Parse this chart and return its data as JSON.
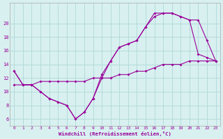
{
  "xlabel": "Windchill (Refroidissement éolien,°C)",
  "bg_color": "#d8f0f0",
  "grid_color": "#b0d8d8",
  "line_color": "#990099",
  "xlim": [
    -0.5,
    23.5
  ],
  "ylim": [
    5,
    23
  ],
  "yticks": [
    6,
    8,
    10,
    12,
    14,
    16,
    18,
    20
  ],
  "xticks": [
    0,
    1,
    2,
    3,
    4,
    5,
    6,
    7,
    8,
    9,
    10,
    11,
    12,
    13,
    14,
    15,
    16,
    17,
    18,
    19,
    20,
    21,
    22,
    23
  ],
  "line1_x": [
    0,
    1,
    2,
    3,
    4,
    5,
    6,
    7,
    8,
    9,
    10,
    11,
    12,
    13,
    14,
    15,
    16,
    17,
    18,
    19,
    20,
    21,
    22,
    23
  ],
  "line1_y": [
    13,
    11,
    11,
    10,
    9,
    8.5,
    8,
    6,
    7,
    9,
    12.5,
    14.5,
    16.5,
    17,
    17.5,
    19.5,
    21,
    21.5,
    21.5,
    21,
    20.5,
    15.5,
    15,
    14.5
  ],
  "line2_x": [
    0,
    1,
    2,
    3,
    4,
    5,
    6,
    7,
    8,
    9,
    10,
    11,
    12,
    13,
    14,
    15,
    16,
    17,
    18,
    19,
    20,
    21,
    22,
    23
  ],
  "line2_y": [
    13,
    11,
    11,
    10,
    9,
    8.5,
    8,
    6,
    7,
    9,
    12,
    14.5,
    16.5,
    17,
    17.5,
    19.5,
    21.5,
    21.5,
    21.5,
    21,
    20.5,
    20.5,
    17.5,
    14.5
  ],
  "line3_x": [
    0,
    1,
    2,
    3,
    4,
    5,
    6,
    7,
    8,
    9,
    10,
    11,
    12,
    13,
    14,
    15,
    16,
    17,
    18,
    19,
    20,
    21,
    22,
    23
  ],
  "line3_y": [
    11,
    11,
    11,
    11.5,
    11.5,
    11.5,
    11.5,
    11.5,
    11.5,
    12,
    12,
    12,
    12.5,
    12.5,
    13,
    13,
    13.5,
    14,
    14,
    14,
    14.5,
    14.5,
    14.5,
    14.5
  ]
}
